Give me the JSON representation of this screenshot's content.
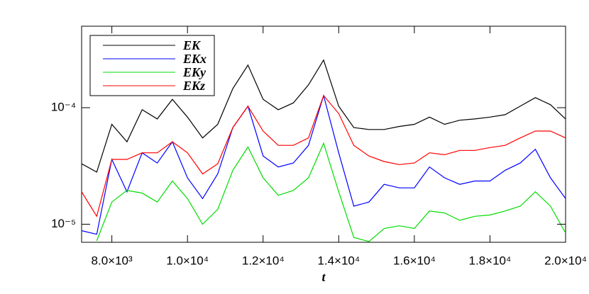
{
  "chart_data": {
    "type": "line",
    "xlabel": "t",
    "x": [
      7200,
      7600,
      8000,
      8400,
      8800,
      9200,
      9600,
      10000,
      10400,
      10800,
      11200,
      11600,
      12000,
      12400,
      12800,
      13200,
      13600,
      14000,
      14400,
      14800,
      15200,
      15600,
      16000,
      16400,
      16800,
      17200,
      17600,
      18000,
      18400,
      18800,
      19200,
      19600,
      20000
    ],
    "series": [
      {
        "name": "EK",
        "color": "#000000",
        "values": [
          3.3e-05,
          2.8e-05,
          7.2e-05,
          5.1e-05,
          9.6e-05,
          8e-05,
          0.000118,
          8.3e-05,
          5.5e-05,
          7.2e-05,
          0.000146,
          0.000232,
          0.000118,
          9.6e-05,
          0.00011,
          0.000157,
          0.000256,
          0.000103,
          6.75e-05,
          6.5e-05,
          6.5e-05,
          6.9e-05,
          7.2e-05,
          8.3e-05,
          7.2e-05,
          7.8e-05,
          8e-05,
          8.3e-05,
          8.7e-05,
          0.000103,
          0.000122,
          0.000106,
          8e-05
        ]
      },
      {
        "name": "EKx",
        "color": "#0000ff",
        "values": [
          8.8e-06,
          8.2e-06,
          3.6e-05,
          1.9e-05,
          4.1e-05,
          3.35e-05,
          5.1e-05,
          2.5e-05,
          1.66e-05,
          2.7e-05,
          6.75e-05,
          0.000103,
          3.85e-05,
          3.1e-05,
          3.35e-05,
          4.75e-05,
          0.000127,
          4.1e-05,
          1.43e-05,
          1.55e-05,
          2.2e-05,
          2.05e-05,
          2.05e-05,
          3.1e-05,
          2.5e-05,
          2.2e-05,
          2.35e-05,
          2.35e-05,
          2.9e-05,
          3.35e-05,
          4.4e-05,
          2.5e-05,
          1.66e-05
        ]
      },
      {
        "name": "EKy",
        "color": "#00dd00",
        "values": [
          null,
          7.2e-06,
          1.55e-05,
          1.95e-05,
          1.85e-05,
          1.55e-05,
          2.35e-05,
          1.66e-05,
          1e-05,
          1.34e-05,
          2.9e-05,
          4.6e-05,
          2.5e-05,
          1.77e-05,
          1.95e-05,
          2.5e-05,
          4.95e-05,
          1.9e-05,
          7.7e-06,
          7.1e-06,
          9.2e-06,
          9.7e-06,
          9.2e-06,
          1.3e-05,
          1.25e-05,
          1.08e-05,
          1.17e-05,
          1.2e-05,
          1.3e-05,
          1.43e-05,
          1.9e-05,
          1.43e-05,
          8.4e-06
        ]
      },
      {
        "name": "EKz",
        "color": "#ff0000",
        "values": [
          1.9e-05,
          1.17e-05,
          3.6e-05,
          3.6e-05,
          4.1e-05,
          4.1e-05,
          5.1e-05,
          4.1e-05,
          2.7e-05,
          3.3e-05,
          6.75e-05,
          0.000103,
          6.3e-05,
          4.75e-05,
          4.75e-05,
          5.5e-05,
          0.000127,
          8.9e-05,
          4.75e-05,
          3.85e-05,
          3.45e-05,
          3.25e-05,
          3.35e-05,
          4.1e-05,
          3.95e-05,
          4.3e-05,
          4.3e-05,
          4.55e-05,
          4.75e-05,
          5.5e-05,
          6.3e-05,
          6.3e-05,
          5.5e-05
        ]
      }
    ],
    "xlim": [
      7200,
      20000
    ],
    "xticks": [
      {
        "value": 8000,
        "label": "8.0×10³"
      },
      {
        "value": 10000,
        "label": "1.0×10⁴"
      },
      {
        "value": 12000,
        "label": "1.2×10⁴"
      },
      {
        "value": 14000,
        "label": "1.4×10⁴"
      },
      {
        "value": 16000,
        "label": "1.6×10⁴"
      },
      {
        "value": 18000,
        "label": "1.8×10⁴"
      },
      {
        "value": 20000,
        "label": "2.0×10⁴"
      }
    ],
    "ylim": [
      7e-06,
      0.0005
    ],
    "yticks": [
      {
        "value": 1e-05,
        "label": "10⁻⁵"
      },
      {
        "value": 0.0001,
        "label": "10⁻⁴"
      }
    ],
    "log_y": true,
    "legend": "upper left"
  }
}
